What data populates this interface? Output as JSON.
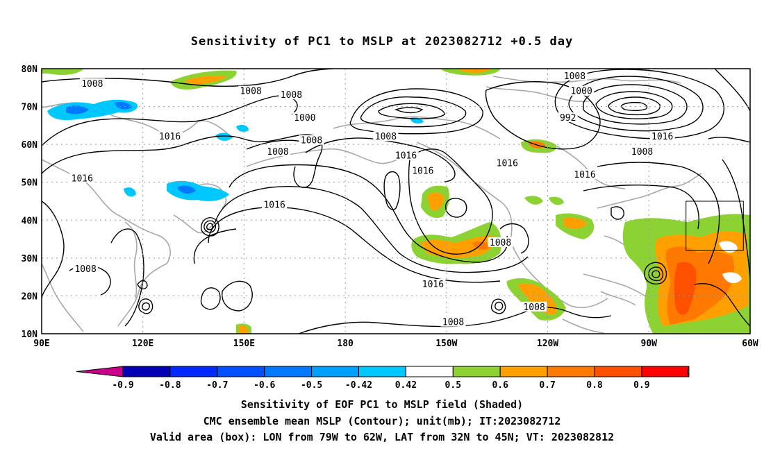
{
  "title": "Sensitivity of PC1 to MSLP at 2023082712 +0.5 day",
  "lat_labels": [
    "80N",
    "70N",
    "60N",
    "50N",
    "40N",
    "30N",
    "20N",
    "10N"
  ],
  "lon_labels": [
    "90E",
    "120E",
    "150E",
    "180",
    "150W",
    "120W",
    "90W",
    "60W"
  ],
  "contour_labels": [
    {
      "text": "1008",
      "lon": 105,
      "lat": 76
    },
    {
      "text": "1008",
      "lon": 152,
      "lat": 74
    },
    {
      "text": "1008",
      "lon": 164,
      "lat": 73
    },
    {
      "text": "1000",
      "lon": 168,
      "lat": 67
    },
    {
      "text": "1008",
      "lon": 192,
      "lat": 62
    },
    {
      "text": "1008",
      "lon": 248,
      "lat": 78
    },
    {
      "text": "1000",
      "lon": 250,
      "lat": 74
    },
    {
      "text": "992",
      "lon": 246,
      "lat": 67
    },
    {
      "text": "1016",
      "lon": 274,
      "lat": 62
    },
    {
      "text": "1008",
      "lon": 268,
      "lat": 58
    },
    {
      "text": "1016",
      "lon": 128,
      "lat": 62
    },
    {
      "text": "1008",
      "lon": 160,
      "lat": 58
    },
    {
      "text": "1008",
      "lon": 170,
      "lat": 61
    },
    {
      "text": "1016",
      "lon": 102,
      "lat": 51
    },
    {
      "text": "1016",
      "lon": 198,
      "lat": 57
    },
    {
      "text": "1016",
      "lon": 203,
      "lat": 53
    },
    {
      "text": "1016",
      "lon": 228,
      "lat": 55
    },
    {
      "text": "1016",
      "lon": 251,
      "lat": 52
    },
    {
      "text": "1016",
      "lon": 159,
      "lat": 44
    },
    {
      "text": "1008",
      "lon": 226,
      "lat": 34
    },
    {
      "text": "1008",
      "lon": 103,
      "lat": 27
    },
    {
      "text": "1016",
      "lon": 206,
      "lat": 23
    },
    {
      "text": "1008",
      "lon": 212,
      "lat": 13
    },
    {
      "text": "1008",
      "lon": 236,
      "lat": 17
    }
  ],
  "colorbar": {
    "labels": [
      "-0.9",
      "-0.8",
      "-0.7",
      "-0.6",
      "-0.5",
      "-0.42",
      "0.42",
      "0.5",
      "0.6",
      "0.7",
      "0.8",
      "0.9"
    ],
    "colors": [
      "#0000b4",
      "#0028ff",
      "#0050ff",
      "#0078ff",
      "#00a0ff",
      "#00c8ff",
      "#ffffff",
      "#8cd232",
      "#ffa000",
      "#ff7800",
      "#ff5000",
      "#ff0000"
    ],
    "low_color": "#c8008c",
    "high_color": "#ff96c8"
  },
  "valid_box": {
    "lon_min": 281,
    "lon_max": 298,
    "lat_min": 32,
    "lat_max": 45
  },
  "caption_lines": [
    "Sensitivity of EOF PC1 to MSLP field (Shaded)",
    "CMC ensemble mean MSLP (Contour); unit(mb); IT:2023082712",
    "Valid area (box): LON from 79W to 62W, LAT from 32N to 45N; VT: 2023082812"
  ]
}
